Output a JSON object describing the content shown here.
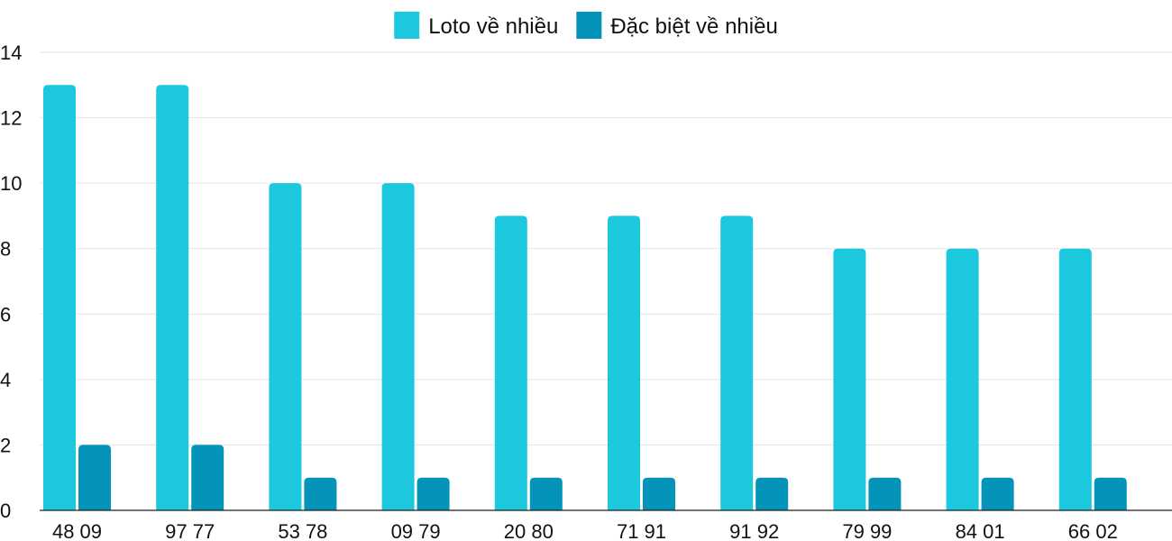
{
  "chart_data": {
    "type": "bar",
    "categories": [
      "48 09",
      "97 77",
      "53 78",
      "09 79",
      "20 80",
      "71 91",
      "91 92",
      "79 99",
      "84 01",
      "66 02"
    ],
    "series": [
      {
        "name": "Loto về nhiều",
        "color": "#1bc8dd",
        "values": [
          13,
          13,
          10,
          10,
          9,
          9,
          9,
          8,
          8,
          8
        ]
      },
      {
        "name": "Đặc biệt về nhiều",
        "color": "#0494b9",
        "values": [
          2,
          2,
          1,
          1,
          1,
          1,
          1,
          1,
          1,
          1
        ]
      }
    ],
    "ylim": [
      0,
      14
    ],
    "yticks": [
      "0",
      "2",
      "4",
      "6",
      "8",
      "10",
      "12",
      "14"
    ],
    "grid": true,
    "legend_position": "top-center"
  }
}
